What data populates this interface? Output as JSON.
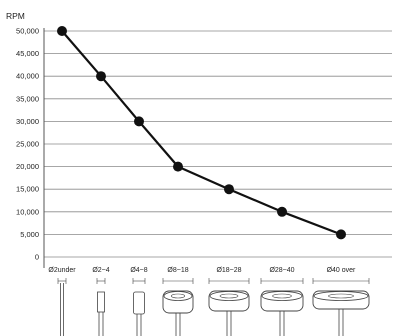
{
  "chart_data": {
    "type": "line",
    "ylabel": "RPM",
    "xlabel": "",
    "ylim": [
      0,
      50000
    ],
    "y_ticks": [
      0,
      5000,
      10000,
      15000,
      20000,
      25000,
      30000,
      35000,
      40000,
      45000,
      50000
    ],
    "y_tick_labels": [
      "0",
      "5,000",
      "10,000",
      "15,000",
      "20,000",
      "25,000",
      "30,000",
      "35,000",
      "40,000",
      "45,000",
      "50,000"
    ],
    "grid": true,
    "categories": [
      "Ø2under",
      "Ø2~4",
      "Ø4~8",
      "Ø8~18",
      "Ø18~28",
      "Ø28~40",
      "Ø40 over"
    ],
    "series": [
      {
        "values": [
          50000,
          40000,
          30000,
          20000,
          15000,
          10000,
          5000
        ]
      }
    ],
    "tool_icons": [
      "spindle-icon-under-2",
      "spindle-icon-2-4",
      "spindle-icon-4-8",
      "spindle-icon-8-18",
      "spindle-icon-18-28",
      "spindle-icon-28-40",
      "spindle-icon-40-over"
    ]
  }
}
